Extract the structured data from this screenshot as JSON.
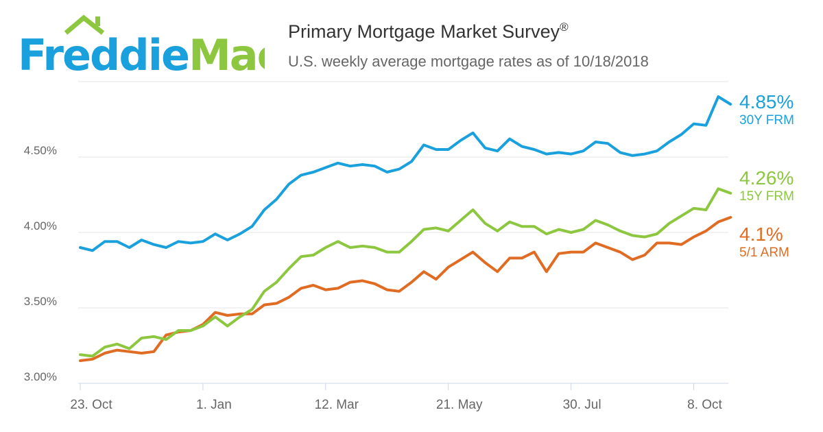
{
  "logo": {
    "text_part1": "Freddie",
    "text_part2": "Mac",
    "colors": {
      "blue": "#1aa0dc",
      "green": "#8dc63f"
    }
  },
  "title": "Primary Mortgage Market Survey",
  "title_mark": "®",
  "subtitle": "U.S. weekly average mortgage rates as of 10/18/2018",
  "chart_data": {
    "type": "line",
    "x_tick_labels": [
      "23. Oct",
      "1. Jan",
      "12. Mar",
      "21. May",
      "30. Jul",
      "8. Oct"
    ],
    "x_tick_week_index": [
      0,
      10,
      20,
      30,
      40,
      50
    ],
    "y_tick_labels": [
      "3.00%",
      "3.50%",
      "4.00%",
      "4.50%"
    ],
    "y_ticks": [
      3.0,
      3.5,
      4.0,
      4.5
    ],
    "ylim": [
      3.0,
      5.0
    ],
    "grid": "horizontal",
    "series": [
      {
        "name": "30Y FRM",
        "color": "#1aa0dc",
        "latest_label": "4.85%",
        "values": [
          3.9,
          3.88,
          3.94,
          3.94,
          3.9,
          3.95,
          3.92,
          3.9,
          3.94,
          3.93,
          3.94,
          3.99,
          3.95,
          3.99,
          4.04,
          4.15,
          4.22,
          4.32,
          4.38,
          4.4,
          4.43,
          4.46,
          4.44,
          4.45,
          4.44,
          4.4,
          4.42,
          4.47,
          4.58,
          4.55,
          4.55,
          4.61,
          4.66,
          4.56,
          4.54,
          4.62,
          4.57,
          4.55,
          4.52,
          4.53,
          4.52,
          4.54,
          4.6,
          4.59,
          4.53,
          4.51,
          4.52,
          4.54,
          4.6,
          4.65,
          4.72,
          4.71,
          4.9,
          4.85
        ]
      },
      {
        "name": "15Y FRM",
        "color": "#8dc63f",
        "latest_label": "4.26%",
        "values": [
          3.19,
          3.18,
          3.24,
          3.26,
          3.23,
          3.3,
          3.31,
          3.29,
          3.35,
          3.35,
          3.38,
          3.44,
          3.38,
          3.44,
          3.49,
          3.61,
          3.67,
          3.76,
          3.84,
          3.85,
          3.9,
          3.94,
          3.9,
          3.91,
          3.9,
          3.87,
          3.87,
          3.94,
          4.02,
          4.03,
          4.01,
          4.08,
          4.15,
          4.06,
          4.01,
          4.07,
          4.04,
          4.04,
          3.99,
          4.02,
          4.0,
          4.02,
          4.08,
          4.05,
          4.01,
          3.98,
          3.97,
          3.99,
          4.06,
          4.11,
          4.16,
          4.15,
          4.29,
          4.26
        ]
      },
      {
        "name": "5/1 ARM",
        "color": "#e06c23",
        "latest_label": "4.1%",
        "values": [
          3.15,
          3.16,
          3.2,
          3.22,
          3.21,
          3.2,
          3.21,
          3.32,
          3.34,
          3.35,
          3.39,
          3.47,
          3.45,
          3.46,
          3.46,
          3.52,
          3.53,
          3.57,
          3.63,
          3.65,
          3.62,
          3.63,
          3.67,
          3.68,
          3.66,
          3.62,
          3.61,
          3.67,
          3.74,
          3.69,
          3.77,
          3.82,
          3.87,
          3.8,
          3.74,
          3.83,
          3.83,
          3.87,
          3.74,
          3.86,
          3.87,
          3.87,
          3.93,
          3.9,
          3.87,
          3.82,
          3.85,
          3.93,
          3.93,
          3.92,
          3.97,
          4.01,
          4.07,
          4.1
        ]
      }
    ]
  }
}
